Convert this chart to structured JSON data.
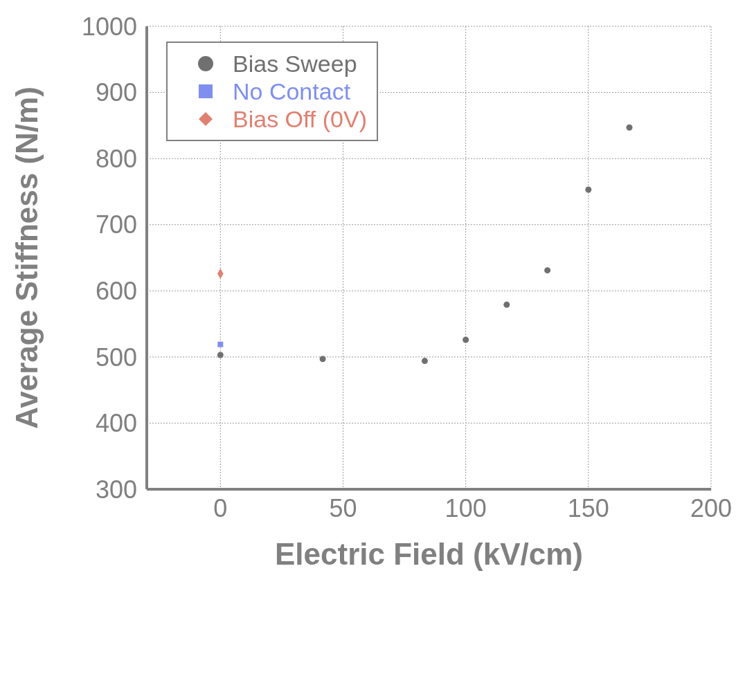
{
  "chart_data": {
    "type": "scatter",
    "xlabel": "Electric Field (kV/cm)",
    "ylabel": "Average  Stiffness (N/m)",
    "xlim": [
      -30,
      200
    ],
    "xticks": [
      0,
      50,
      100,
      150,
      200
    ],
    "ylim": [
      300,
      1000
    ],
    "yticks": [
      300,
      400,
      500,
      600,
      700,
      800,
      900,
      1000
    ],
    "grid": true,
    "legend": "top left",
    "series": [
      {
        "name": "Bias Sweep",
        "color": "#707070",
        "marker": "circle",
        "x": [
          0,
          41.7,
          83.3,
          100,
          116.7,
          133.3,
          150,
          166.7
        ],
        "values": [
          503,
          497,
          494,
          526,
          579,
          631,
          753,
          847
        ]
      },
      {
        "name": "No Contact",
        "color": "#7f8fef",
        "marker": "square",
        "x": [
          0
        ],
        "values": [
          519
        ]
      },
      {
        "name": "Bias Off (0V)",
        "color": "#e08070",
        "marker": "diamond",
        "x": [
          0
        ],
        "values": [
          626
        ]
      }
    ]
  }
}
